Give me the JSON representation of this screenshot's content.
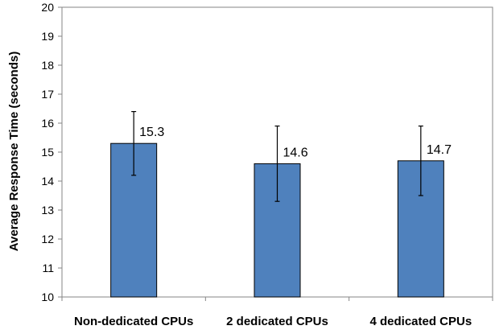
{
  "chart_data": {
    "type": "bar",
    "title": "",
    "xlabel": "",
    "ylabel": "Average Response Time (seconds)",
    "categories": [
      "Non-dedicated CPUs",
      "2 dedicated CPUs",
      "4 dedicated CPUs"
    ],
    "values": [
      15.3,
      14.6,
      14.7
    ],
    "value_labels": [
      "15.3",
      "14.6",
      "14.7"
    ],
    "error_bars": [
      {
        "low": 14.2,
        "high": 16.4
      },
      {
        "low": 13.3,
        "high": 15.9
      },
      {
        "low": 13.5,
        "high": 15.9
      }
    ],
    "ylim": [
      10,
      20
    ],
    "yticks": [
      10,
      11,
      12,
      13,
      14,
      15,
      16,
      17,
      18,
      19,
      20
    ],
    "grid": false,
    "legend": "none",
    "colors": {
      "bar": "#4f81bd",
      "bar_edge": "#000000",
      "axis": "#868686",
      "error_bar": "#000000"
    }
  }
}
